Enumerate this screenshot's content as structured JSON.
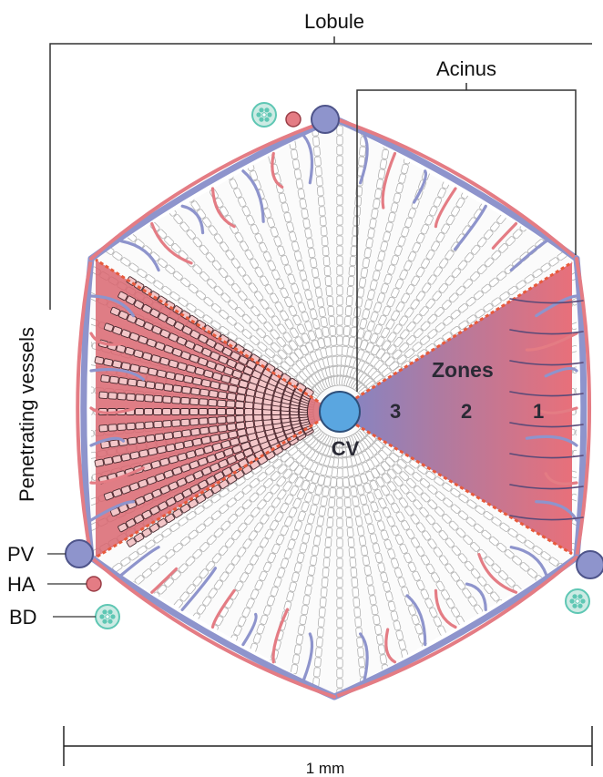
{
  "labels": {
    "lobule": "Lobule",
    "acinus": "Acinus",
    "penetrating_vessels": "Penetrating vessels",
    "pv": "PV",
    "ha": "HA",
    "bd": "BD",
    "cv": "CV",
    "zones": "Zones",
    "zone_3": "3",
    "zone_2": "2",
    "zone_1": "1",
    "scale": "1 mm"
  },
  "colors": {
    "portal_vein": "#8e94cc",
    "hepatic_artery": "#e47c84",
    "bile_duct": "#5fc7b4",
    "central_vein": "#5aa6e0",
    "acinus_blue": "#7f86c8",
    "acinus_red": "#e8707a",
    "sector_red": "#d96670",
    "sector_cells": "#f3c6c8",
    "cell_outline": "#b0b0b0",
    "zone_border": "#e85a3c",
    "bracket": "#333333"
  }
}
